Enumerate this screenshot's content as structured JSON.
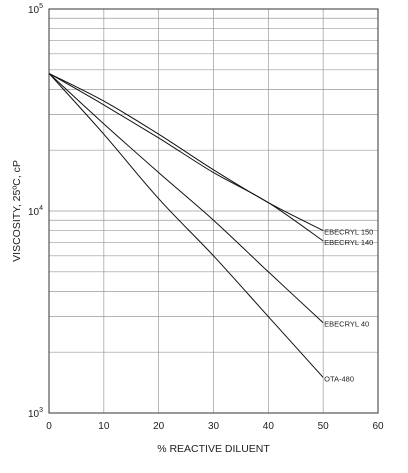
{
  "chart_data": {
    "type": "line",
    "title": "",
    "xlabel": "% REACTIVE DILUENT",
    "ylabel": "VISCOSITY, 25ºC, cP",
    "x_scale": "linear",
    "y_scale": "log",
    "xlim": [
      0,
      60
    ],
    "ylim": [
      1000,
      100000
    ],
    "x_ticks": [
      "0",
      "10",
      "20",
      "30",
      "40",
      "50",
      "60"
    ],
    "y_ticks": [
      {
        "value": 1000,
        "base": "10",
        "exp": "3"
      },
      {
        "value": 10000,
        "base": "10",
        "exp": "4"
      },
      {
        "value": 100000,
        "base": "10",
        "exp": "5"
      }
    ],
    "grid": true,
    "legend": "none",
    "series": [
      {
        "name": "EBECRYL 150",
        "x": [
          0,
          10,
          20,
          30,
          40,
          50
        ],
        "y": [
          48000,
          35000,
          24000,
          16000,
          11000,
          8000
        ]
      },
      {
        "name": "EBECRYL 140",
        "x": [
          0,
          10,
          20,
          30,
          40,
          50
        ],
        "y": [
          48000,
          33500,
          23000,
          15500,
          11000,
          7100
        ]
      },
      {
        "name": "EBECRYL 40",
        "x": [
          0,
          10,
          20,
          30,
          40,
          50
        ],
        "y": [
          48000,
          27000,
          15500,
          9000,
          5000,
          2800
        ]
      },
      {
        "name": "OTA-480",
        "x": [
          0,
          10,
          20,
          30,
          40,
          50
        ],
        "y": [
          48000,
          24000,
          11500,
          6000,
          3000,
          1500
        ]
      }
    ]
  }
}
